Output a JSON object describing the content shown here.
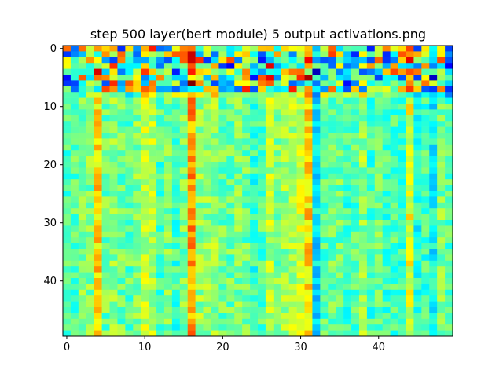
{
  "chart_data": {
    "type": "heatmap",
    "title": "step 500 layer(bert module) 5 output activations.png",
    "xlabel": "",
    "ylabel": "",
    "rows": 50,
    "cols": 50,
    "colormap": "jet",
    "value_range": [
      0,
      1
    ],
    "xlim": [
      -0.5,
      49.5
    ],
    "ylim": [
      49.5,
      -0.5
    ],
    "x_ticks": [
      0,
      10,
      20,
      30,
      40
    ],
    "y_ticks": [
      0,
      10,
      20,
      30,
      40
    ],
    "x_tick_labels": [
      "0",
      "10",
      "20",
      "30",
      "40"
    ],
    "y_tick_labels": [
      "0",
      "10",
      "20",
      "30",
      "40"
    ],
    "column_means": [
      0.45,
      0.46,
      0.5,
      0.5,
      0.66,
      0.48,
      0.52,
      0.48,
      0.47,
      0.5,
      0.56,
      0.55,
      0.45,
      0.5,
      0.44,
      0.5,
      0.72,
      0.52,
      0.52,
      0.52,
      0.48,
      0.48,
      0.5,
      0.48,
      0.43,
      0.46,
      0.55,
      0.5,
      0.52,
      0.55,
      0.58,
      0.66,
      0.36,
      0.46,
      0.48,
      0.48,
      0.44,
      0.46,
      0.52,
      0.44,
      0.48,
      0.44,
      0.45,
      0.44,
      0.6,
      0.4,
      0.44,
      0.38,
      0.5,
      0.46
    ],
    "row_offsets": [
      0.05,
      0.08,
      0.06,
      0.05,
      0.08,
      0.05,
      0.04,
      0.1,
      0.15,
      0,
      0,
      0,
      0,
      0,
      0,
      0,
      0,
      0,
      0,
      0,
      0,
      0,
      0,
      0,
      0,
      0,
      0,
      0,
      0,
      0,
      0,
      0,
      0,
      0,
      0,
      0,
      0,
      0,
      0,
      0,
      0,
      0,
      0,
      0,
      0,
      0,
      0,
      0,
      0,
      0
    ],
    "top_band_rows": 8,
    "top_band_spread": 0.32,
    "body_spread": 0.08,
    "random_seed": 500
  }
}
